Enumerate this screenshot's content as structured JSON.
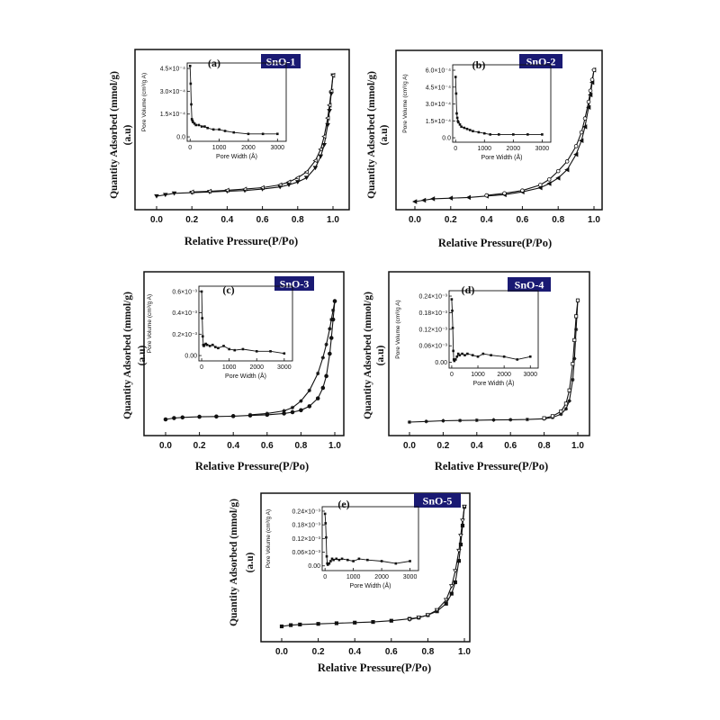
{
  "chart_data": [
    {
      "type": "line",
      "panel_label": "(a)",
      "sample_name": "SnO-1",
      "xlabel": "Relative Pressure(P/Po)",
      "ylabel_line1": "Quantity Adsorbed (mmol/g)",
      "ylabel_line2": "(a.u)",
      "xlim": [
        0,
        1.0
      ],
      "ylim": [
        0,
        1.0
      ],
      "x_ticks": [
        "0.0",
        "0.2",
        "0.4",
        "0.6",
        "0.8",
        "1.0"
      ],
      "series": [
        {
          "x": [
            0.0,
            0.05,
            0.1,
            0.2,
            0.3,
            0.4,
            0.5,
            0.6,
            0.7,
            0.75,
            0.8,
            0.85,
            0.9,
            0.93,
            0.95,
            0.97,
            0.98,
            0.99,
            1.0
          ],
          "y": [
            0.0,
            0.01,
            0.02,
            0.025,
            0.03,
            0.035,
            0.04,
            0.05,
            0.065,
            0.08,
            0.1,
            0.13,
            0.2,
            0.28,
            0.36,
            0.5,
            0.6,
            0.72,
            0.85
          ]
        },
        {
          "x": [
            1.0,
            0.99,
            0.98,
            0.97,
            0.95,
            0.93,
            0.9,
            0.85,
            0.8,
            0.75,
            0.7,
            0.6,
            0.5,
            0.4,
            0.3,
            0.2
          ],
          "y": [
            0.85,
            0.74,
            0.64,
            0.55,
            0.42,
            0.33,
            0.25,
            0.17,
            0.13,
            0.1,
            0.08,
            0.06,
            0.05,
            0.042,
            0.035,
            0.03
          ]
        }
      ],
      "inset": {
        "xlabel": "Pore Width (Å)",
        "ylabel": "Pore Volume (cm³/g A)",
        "x_ticks": [
          "0",
          "1000",
          "2000",
          "3000"
        ],
        "y_ticks": [
          "0.0",
          "1.5×10⁻⁴",
          "3.0×10⁻⁴",
          "4.5×10⁻⁴"
        ],
        "xlim": [
          -100,
          3300
        ],
        "ylim": [
          -3e-05,
          0.0005
        ],
        "x": [
          0,
          20,
          40,
          60,
          80,
          100,
          150,
          200,
          300,
          400,
          500,
          600,
          800,
          1000,
          1200,
          1500,
          2000,
          2500,
          3000
        ],
        "y": [
          0.00048,
          0.00036,
          0.00022,
          0.00012,
          0.00011,
          0.0001,
          9e-05,
          8e-05,
          8e-05,
          7e-05,
          7e-05,
          6e-05,
          5e-05,
          5e-05,
          4e-05,
          3e-05,
          2e-05,
          2e-05,
          2e-05
        ]
      }
    },
    {
      "type": "line",
      "panel_label": "(b)",
      "sample_name": "SnO-2",
      "xlabel": "Relative Pressure(P/Po)",
      "ylabel_line1": "Quantity Adsorbed (mmol/g)",
      "ylabel_line2": "(a.u)",
      "xlim": [
        0,
        1.0
      ],
      "ylim": [
        0,
        1.0
      ],
      "x_ticks": [
        "0.0",
        "0.2",
        "0.4",
        "0.6",
        "0.8",
        "1.0"
      ],
      "series": [
        {
          "x": [
            0.0,
            0.05,
            0.1,
            0.2,
            0.3,
            0.4,
            0.5,
            0.6,
            0.7,
            0.75,
            0.8,
            0.85,
            0.9,
            0.93,
            0.95,
            0.97,
            0.98,
            0.99,
            1.0
          ],
          "y": [
            0.0,
            0.01,
            0.02,
            0.025,
            0.03,
            0.04,
            0.05,
            0.07,
            0.1,
            0.13,
            0.17,
            0.23,
            0.34,
            0.44,
            0.54,
            0.68,
            0.77,
            0.86,
            0.95
          ]
        },
        {
          "x": [
            1.0,
            0.99,
            0.98,
            0.97,
            0.95,
            0.93,
            0.9,
            0.85,
            0.8,
            0.75,
            0.7,
            0.6,
            0.5,
            0.4
          ],
          "y": [
            0.95,
            0.88,
            0.8,
            0.72,
            0.6,
            0.5,
            0.4,
            0.29,
            0.22,
            0.16,
            0.12,
            0.08,
            0.06,
            0.045
          ]
        }
      ],
      "inset": {
        "xlabel": "Pore Width (Å)",
        "ylabel": "Pore Volume (cm³/g A)",
        "x_ticks": [
          "0",
          "1000",
          "2000",
          "3000"
        ],
        "y_ticks": [
          "0.0",
          "1.5×10⁻⁴",
          "3.0×10⁻⁴",
          "4.5×10⁻⁴",
          "6.0×10⁻⁴"
        ],
        "xlim": [
          -100,
          3300
        ],
        "ylim": [
          -4e-05,
          0.00066
        ],
        "x": [
          0,
          20,
          40,
          60,
          80,
          100,
          150,
          200,
          300,
          400,
          500,
          600,
          800,
          1000,
          1200,
          1500,
          2000,
          2500,
          3000
        ],
        "y": [
          0.00055,
          0.0004,
          0.00022,
          0.00018,
          0.00015,
          0.00014,
          0.00012,
          0.0001,
          9e-05,
          8e-05,
          7e-05,
          6e-05,
          5e-05,
          4e-05,
          3e-05,
          3e-05,
          3e-05,
          3e-05,
          3e-05
        ]
      }
    },
    {
      "type": "line",
      "panel_label": "(c)",
      "sample_name": "SnO-3",
      "xlabel": "Relative Pressure(P/Po)",
      "ylabel_line1": "Quantity Adsorbed (mmol/g)",
      "ylabel_line2": "(a.u)",
      "xlim": [
        0,
        1.0
      ],
      "ylim": [
        0,
        1.0
      ],
      "x_ticks": [
        "0.0",
        "0.2",
        "0.4",
        "0.6",
        "0.8",
        "1.0"
      ],
      "series": [
        {
          "x": [
            0.0,
            0.05,
            0.1,
            0.2,
            0.3,
            0.4,
            0.5,
            0.6,
            0.7,
            0.75,
            0.8,
            0.85,
            0.9,
            0.93,
            0.95,
            0.97,
            0.98,
            0.99,
            1.0
          ],
          "y": [
            0.0,
            0.01,
            0.015,
            0.02,
            0.022,
            0.025,
            0.03,
            0.035,
            0.045,
            0.055,
            0.07,
            0.1,
            0.16,
            0.24,
            0.33,
            0.5,
            0.62,
            0.76,
            0.9
          ]
        },
        {
          "x": [
            1.0,
            0.99,
            0.98,
            0.97,
            0.95,
            0.93,
            0.9,
            0.85,
            0.8,
            0.75,
            0.7,
            0.6,
            0.5
          ],
          "y": [
            0.9,
            0.83,
            0.76,
            0.69,
            0.57,
            0.47,
            0.35,
            0.22,
            0.14,
            0.09,
            0.065,
            0.045,
            0.035
          ]
        }
      ],
      "inset": {
        "xlabel": "Pore Width (Å)",
        "ylabel": "Pore Volume (cm³/g A)",
        "x_ticks": [
          "0",
          "1000",
          "2000",
          "3000"
        ],
        "y_ticks": [
          "0.00",
          "0.2×10⁻³",
          "0.4×10⁻³",
          "0.6×10⁻³"
        ],
        "xlim": [
          -100,
          3300
        ],
        "ylim": [
          -5e-05,
          0.00065
        ],
        "x": [
          0,
          20,
          40,
          60,
          80,
          100,
          150,
          200,
          300,
          400,
          500,
          600,
          800,
          1000,
          1200,
          1500,
          2000,
          2500,
          3000
        ],
        "y": [
          0.0006,
          0.00035,
          0.00018,
          0.0001,
          9e-05,
          0.0001,
          0.00011,
          0.0001,
          9e-05,
          0.0001,
          8e-05,
          7e-05,
          9e-05,
          6e-05,
          5e-05,
          6e-05,
          4e-05,
          4e-05,
          2e-05
        ]
      }
    },
    {
      "type": "line",
      "panel_label": "(d)",
      "sample_name": "SnO-4",
      "xlabel": "Relative Pressure(P/Po)",
      "ylabel_line1": "Quantity Adsorbed (mmol/g)",
      "ylabel_line2": "(a.u)",
      "xlim": [
        0,
        1.0
      ],
      "ylim": [
        0,
        1.0
      ],
      "x_ticks": [
        "0.0",
        "0.2",
        "0.4",
        "0.6",
        "0.8",
        "1.0"
      ],
      "series": [
        {
          "x": [
            0.0,
            0.1,
            0.2,
            0.3,
            0.4,
            0.5,
            0.6,
            0.7,
            0.8,
            0.85,
            0.9,
            0.93,
            0.95,
            0.97,
            0.98,
            0.99,
            1.0
          ],
          "y": [
            0.0,
            0.005,
            0.01,
            0.012,
            0.014,
            0.016,
            0.018,
            0.02,
            0.025,
            0.035,
            0.06,
            0.1,
            0.16,
            0.32,
            0.48,
            0.7,
            0.92
          ]
        },
        {
          "x": [
            1.0,
            0.99,
            0.98,
            0.97,
            0.95,
            0.93,
            0.9,
            0.85,
            0.8
          ],
          "y": [
            0.92,
            0.8,
            0.62,
            0.44,
            0.24,
            0.14,
            0.08,
            0.045,
            0.03
          ]
        }
      ],
      "inset": {
        "xlabel": "Pore Width (Å)",
        "ylabel": "Pore Volume (cm³/g A)",
        "x_ticks": [
          "0",
          "1000",
          "2000",
          "3000"
        ],
        "y_ticks": [
          "0.00",
          "0.06×10⁻³",
          "0.12×10⁻³",
          "0.18×10⁻³",
          "0.24×10⁻³"
        ],
        "xlim": [
          -100,
          3300
        ],
        "ylim": [
          -2e-05,
          0.00025
        ],
        "x": [
          0,
          20,
          40,
          60,
          80,
          100,
          150,
          200,
          250,
          300,
          400,
          500,
          600,
          800,
          1000,
          1200,
          1500,
          2000,
          2500,
          3000
        ],
        "y": [
          0.00022,
          0.00018,
          0.00012,
          4e-05,
          1e-05,
          5e-06,
          1e-05,
          2e-05,
          3e-05,
          2.5e-05,
          3e-05,
          2.5e-05,
          3e-05,
          2.5e-05,
          2e-05,
          3e-05,
          2.5e-05,
          2e-05,
          1e-05,
          2e-05
        ]
      }
    },
    {
      "type": "line",
      "panel_label": "(e)",
      "sample_name": "SnO-5",
      "xlabel": "Relative Pressure(P/Po)",
      "ylabel_line1": "Quantity Adsorbed (mmol/g)",
      "ylabel_line2": "(a.u)",
      "xlim": [
        0,
        1.0
      ],
      "ylim": [
        0,
        1.0
      ],
      "x_ticks": [
        "0.0",
        "0.2",
        "0.4",
        "0.6",
        "0.8",
        "1.0"
      ],
      "series": [
        {
          "x": [
            0.0,
            0.05,
            0.1,
            0.2,
            0.3,
            0.4,
            0.5,
            0.6,
            0.7,
            0.75,
            0.8,
            0.85,
            0.9,
            0.93,
            0.95,
            0.97,
            0.98,
            0.99,
            1.0
          ],
          "y": [
            0.0,
            0.01,
            0.015,
            0.02,
            0.025,
            0.03,
            0.035,
            0.045,
            0.06,
            0.07,
            0.09,
            0.12,
            0.18,
            0.26,
            0.35,
            0.52,
            0.65,
            0.8,
            0.95
          ]
        },
        {
          "x": [
            1.0,
            0.99,
            0.98,
            0.97,
            0.95,
            0.93,
            0.9,
            0.85,
            0.8,
            0.75,
            0.7
          ],
          "y": [
            0.95,
            0.84,
            0.72,
            0.6,
            0.44,
            0.32,
            0.21,
            0.13,
            0.09,
            0.07,
            0.055
          ]
        }
      ],
      "inset": {
        "xlabel": "Pore Width (Å)",
        "ylabel": "Pore Volume (cm³/g A)",
        "x_ticks": [
          "0",
          "1000",
          "2000",
          "3000"
        ],
        "y_ticks": [
          "0.00",
          "0.06×10⁻³",
          "0.12×10⁻³",
          "0.18×10⁻³",
          "0.24×10⁻³"
        ],
        "xlim": [
          -100,
          3300
        ],
        "ylim": [
          -2e-05,
          0.00025
        ],
        "x": [
          0,
          20,
          40,
          60,
          80,
          100,
          150,
          200,
          250,
          300,
          400,
          500,
          600,
          800,
          1000,
          1200,
          1500,
          2000,
          2500,
          3000
        ],
        "y": [
          0.00022,
          0.00018,
          0.00012,
          4e-05,
          1e-05,
          5e-06,
          1e-05,
          2e-05,
          3e-05,
          2.5e-05,
          3e-05,
          2.5e-05,
          3e-05,
          2.5e-05,
          2e-05,
          3e-05,
          2.5e-05,
          2e-05,
          1e-05,
          2e-05
        ]
      }
    }
  ],
  "colors": {
    "name_box": "#1a1a73",
    "axes": "#000000"
  }
}
